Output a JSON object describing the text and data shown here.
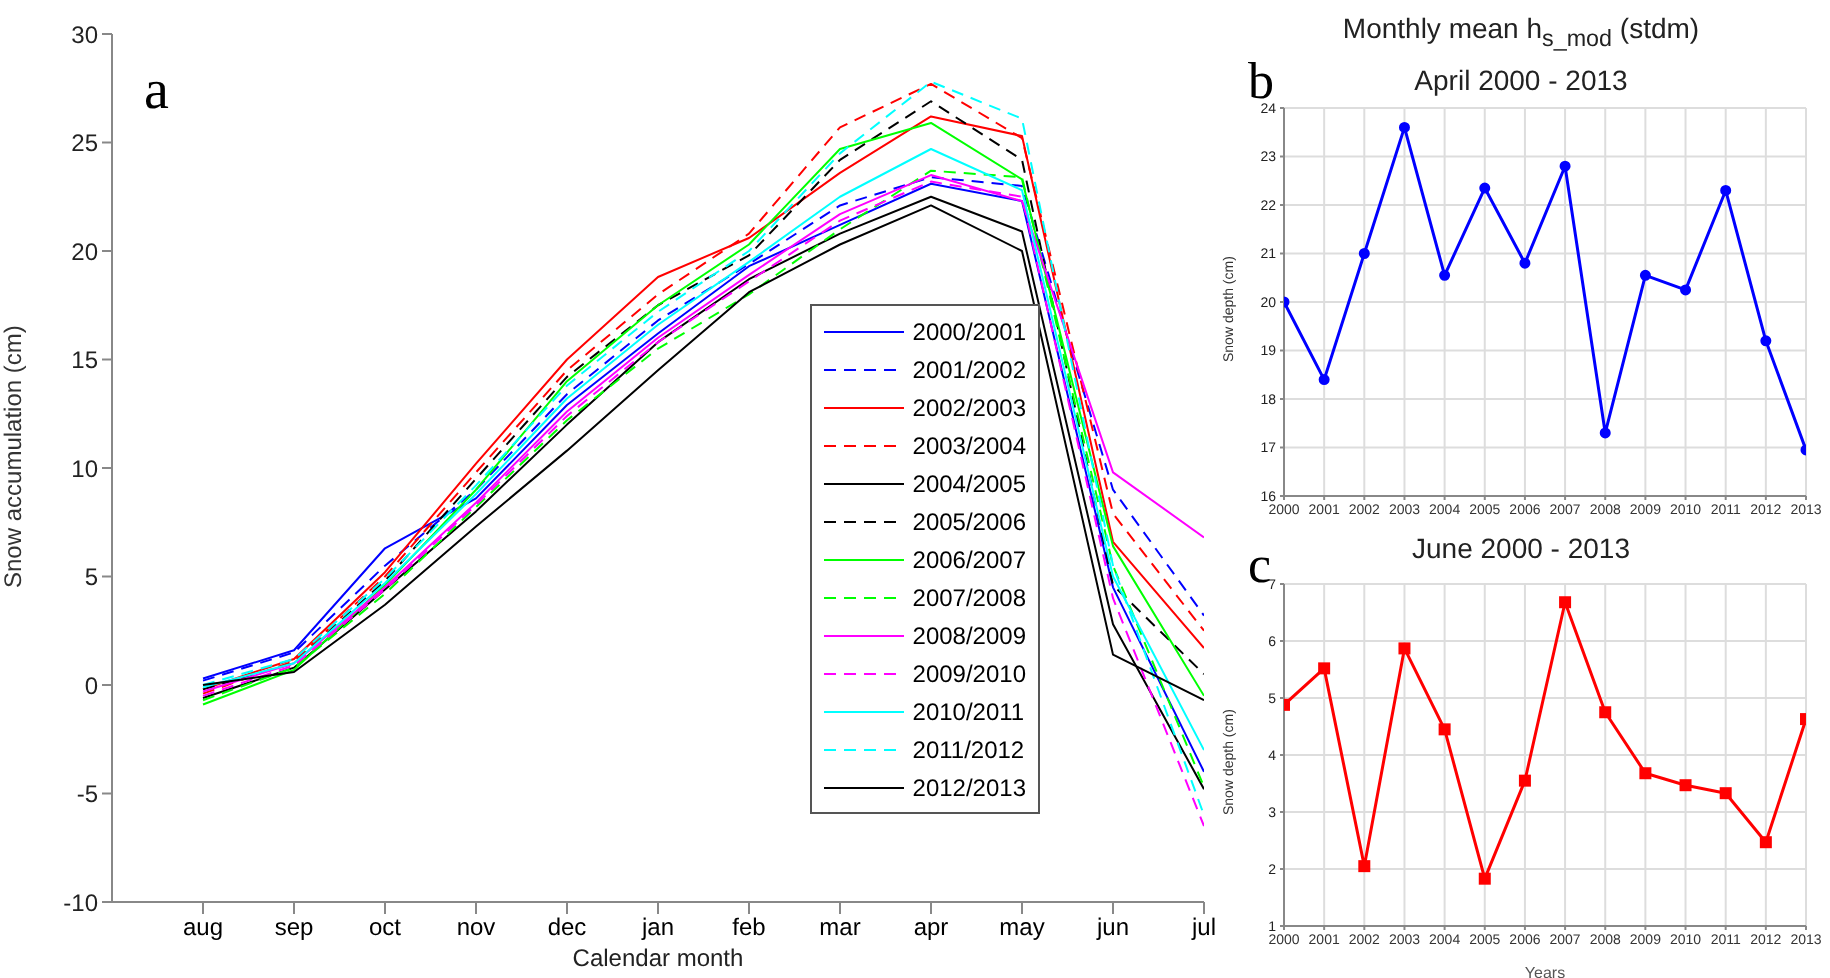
{
  "chart_data": [
    {
      "type": "line",
      "xlabel": "Calendar month",
      "ylabel": "Snow accumulation (cm)",
      "annotations": [
        "a"
      ],
      "categories": [
        "aug",
        "sep",
        "oct",
        "nov",
        "dec",
        "jan",
        "feb",
        "mar",
        "apr",
        "may",
        "jun",
        "jul"
      ],
      "ylim": [
        -10,
        30
      ],
      "yticks": [
        -10,
        -5,
        0,
        5,
        10,
        15,
        20,
        25,
        30
      ],
      "grid": false,
      "legend": "right",
      "marker": "none",
      "series": [
        {
          "name": "2000/2001",
          "color": "#0000ff",
          "line_style": "solid",
          "values": [
            0.3,
            1.6,
            6.3,
            8.6,
            12.9,
            16.2,
            19.3,
            21.2,
            23.1,
            22.3,
            4.5,
            -4.0
          ]
        },
        {
          "name": "2001/2002",
          "color": "#0000ff",
          "line_style": "dashed",
          "values": [
            0.2,
            1.5,
            5.5,
            9.0,
            13.4,
            16.8,
            19.4,
            22.1,
            23.4,
            23.0,
            9.0,
            3.2
          ]
        },
        {
          "name": "2002/2003",
          "color": "#ff0000",
          "line_style": "solid",
          "values": [
            -0.2,
            1.2,
            5.2,
            10.2,
            15.0,
            18.8,
            20.6,
            23.6,
            26.2,
            25.3,
            6.6,
            1.7
          ]
        },
        {
          "name": "2003/2004",
          "color": "#ff0000",
          "line_style": "dashed",
          "values": [
            -0.4,
            1.1,
            5.0,
            9.8,
            14.5,
            18.0,
            20.8,
            25.7,
            27.7,
            25.2,
            7.9,
            2.5
          ]
        },
        {
          "name": "2004/2005",
          "color": "#000000",
          "line_style": "solid",
          "values": [
            -0.6,
            0.8,
            4.4,
            8.0,
            12.0,
            15.8,
            18.7,
            20.8,
            22.5,
            20.9,
            2.8,
            -4.8
          ]
        },
        {
          "name": "2005/2006",
          "color": "#000000",
          "line_style": "dashed",
          "values": [
            -0.2,
            1.0,
            4.8,
            9.5,
            14.2,
            17.5,
            19.8,
            24.2,
            26.9,
            24.2,
            4.6,
            0.5
          ]
        },
        {
          "name": "2006/2007",
          "color": "#00ff00",
          "line_style": "solid",
          "values": [
            -0.9,
            0.7,
            4.6,
            9.0,
            14.0,
            17.5,
            20.3,
            24.7,
            25.9,
            23.3,
            6.4,
            -0.5
          ]
        },
        {
          "name": "2007/2008",
          "color": "#00ff00",
          "line_style": "dashed",
          "values": [
            -0.7,
            0.8,
            4.2,
            8.2,
            12.2,
            15.5,
            18.0,
            21.0,
            23.7,
            23.4,
            5.5,
            -4.7
          ]
        },
        {
          "name": "2008/2009",
          "color": "#ff00ff",
          "line_style": "solid",
          "values": [
            -0.3,
            1.0,
            4.5,
            8.4,
            12.6,
            16.0,
            18.9,
            21.7,
            23.5,
            22.3,
            9.8,
            6.8
          ]
        },
        {
          "name": "2009/2010",
          "color": "#ff00ff",
          "line_style": "dashed",
          "values": [
            -0.5,
            0.9,
            4.4,
            8.3,
            12.4,
            15.8,
            18.6,
            21.4,
            23.2,
            22.5,
            4.0,
            -6.5
          ]
        },
        {
          "name": "2010/2011",
          "color": "#00ffff",
          "line_style": "solid",
          "values": [
            -0.1,
            1.0,
            4.7,
            8.8,
            13.2,
            16.6,
            19.5,
            22.5,
            24.7,
            22.8,
            5.0,
            -3.0
          ]
        },
        {
          "name": "2011/2012",
          "color": "#00ffff",
          "line_style": "dashed",
          "values": [
            0.0,
            1.2,
            4.9,
            9.2,
            13.8,
            17.2,
            20.0,
            24.5,
            27.8,
            26.1,
            5.5,
            -6.0
          ]
        },
        {
          "name": "2012/2013",
          "color": "#000000",
          "line_style": "solid",
          "values": [
            0.0,
            0.6,
            3.7,
            7.3,
            10.8,
            14.5,
            18.1,
            20.3,
            22.1,
            20.0,
            1.4,
            -0.7
          ]
        }
      ]
    },
    {
      "type": "line",
      "title": "Monthly mean h$_{s_mod}$ (stdm)",
      "subtitle": "April 2000 -  2013",
      "ylabel": "Snow depth (cm)",
      "annotations": [
        "b"
      ],
      "x": [
        2000,
        2001,
        2002,
        2003,
        2004,
        2005,
        2006,
        2007,
        2008,
        2009,
        2010,
        2011,
        2012,
        2013
      ],
      "xlim": [
        2000,
        2013
      ],
      "xticks": [
        2000,
        2001,
        2002,
        2003,
        2004,
        2005,
        2006,
        2007,
        2008,
        2009,
        2010,
        2011,
        2012,
        2013
      ],
      "ylim": [
        16,
        24
      ],
      "yticks": [
        16,
        17,
        18,
        19,
        20,
        21,
        22,
        23,
        24
      ],
      "grid": true,
      "marker": "circle",
      "line_style": "solid",
      "series": [
        {
          "color": "#0000ff",
          "values": [
            20.0,
            18.4,
            21.0,
            23.6,
            20.55,
            22.35,
            20.8,
            22.8,
            17.3,
            20.55,
            20.25,
            22.3,
            19.2,
            16.95
          ]
        }
      ]
    },
    {
      "type": "line",
      "title": "June 2000 -  2013",
      "xlabel": "Years",
      "ylabel": "Snow depth (cm)",
      "annotations": [
        "c"
      ],
      "x": [
        2000,
        2001,
        2002,
        2003,
        2004,
        2005,
        2006,
        2007,
        2008,
        2009,
        2010,
        2011,
        2012,
        2013
      ],
      "xlim": [
        2000,
        2013
      ],
      "xticks": [
        2000,
        2001,
        2002,
        2003,
        2004,
        2005,
        2006,
        2007,
        2008,
        2009,
        2010,
        2011,
        2012,
        2013
      ],
      "ylim": [
        1,
        7
      ],
      "yticks": [
        1,
        2,
        3,
        4,
        5,
        6,
        7
      ],
      "grid": true,
      "marker": "square",
      "line_style": "solid",
      "series": [
        {
          "color": "#ff0000",
          "values": [
            4.88,
            5.52,
            2.05,
            5.87,
            4.45,
            1.83,
            3.55,
            6.68,
            4.75,
            3.68,
            3.47,
            3.33,
            2.47,
            4.63
          ]
        }
      ]
    }
  ]
}
